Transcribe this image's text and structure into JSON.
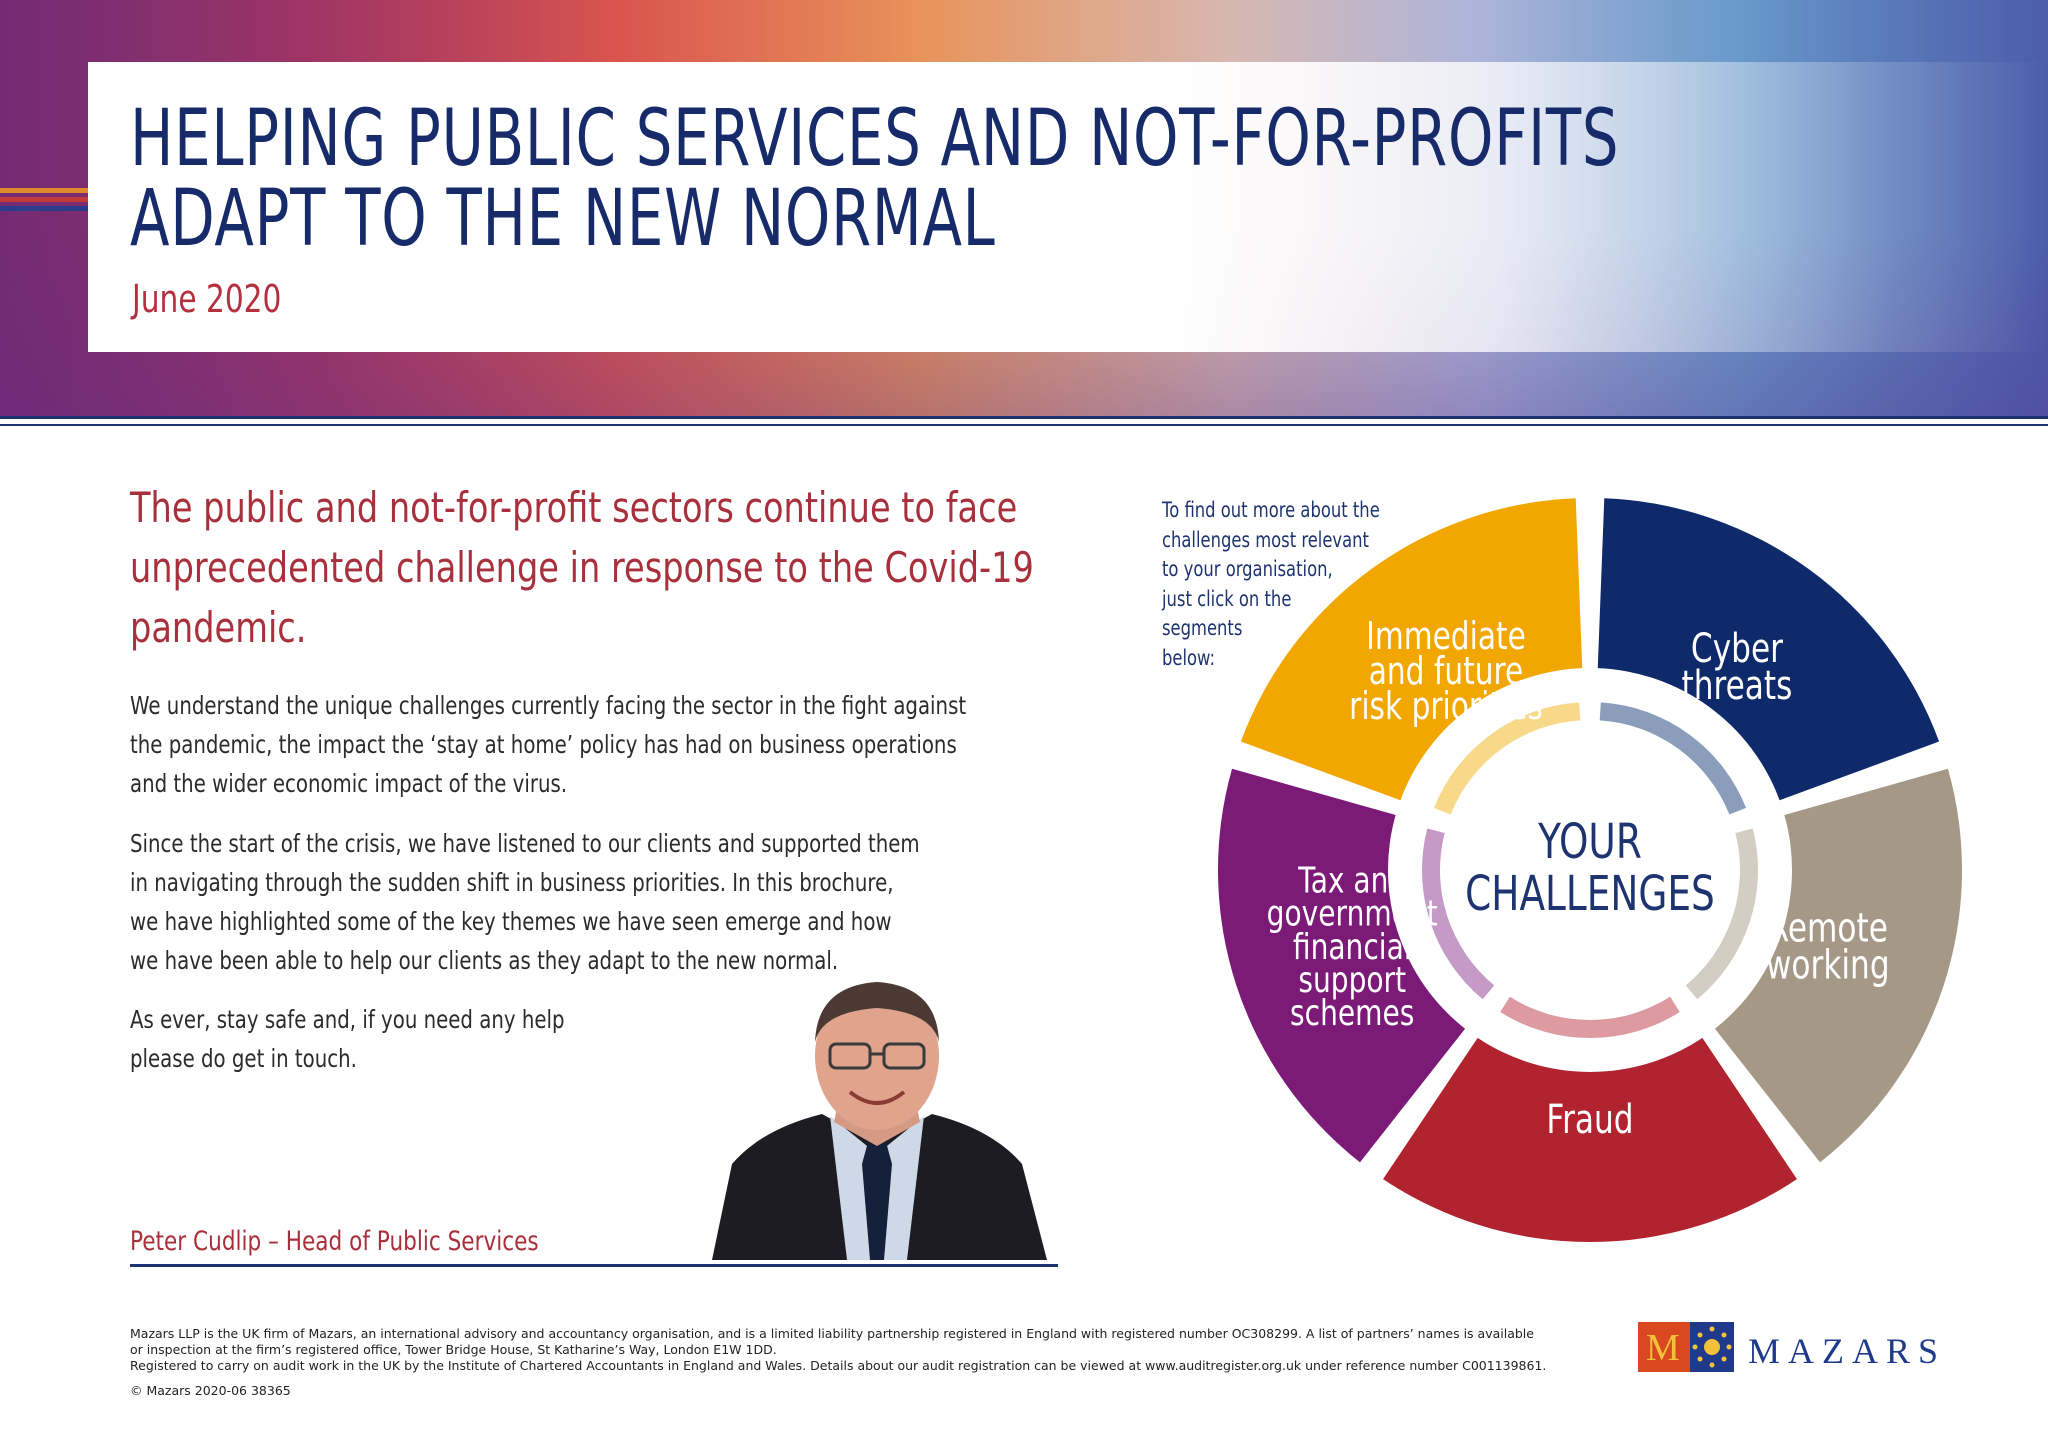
{
  "header": {
    "title_line1": "HELPING PUBLIC SERVICES AND NOT-FOR-PROFITS",
    "title_line2": "ADAPT TO THE NEW NORMAL",
    "date": "June 2020"
  },
  "intro": {
    "lines": [
      "The public and not-for-profit sectors continue to face",
      "unprecedented challenge in response to the Covid-19",
      "pandemic."
    ]
  },
  "body": {
    "paragraph1": [
      "We understand the unique challenges currently facing the sector in the fight against",
      "the pandemic, the impact the ‘stay at home’ policy has had on business operations",
      "and the wider economic impact of the virus."
    ],
    "paragraph2": [
      "Since the start of the crisis, we have listened to our clients and supported them",
      "in navigating through the sudden shift in business priorities. In this brochure,",
      "we have highlighted some of the key themes we have seen emerge and how",
      "we have been able to help our clients as they adapt to the new normal."
    ],
    "paragraph3": [
      "As ever, stay safe and, if you need any help",
      "please do get in touch."
    ]
  },
  "signature": "Peter Cudlip – Head of Public Services",
  "wheel": {
    "note_lines": [
      "To find out more about the",
      "challenges most relevant",
      "to your organisation,",
      "just click on the",
      "segments",
      "below:"
    ],
    "center_line1": "YOUR",
    "center_line2": "CHALLENGES",
    "segments": [
      {
        "id": "cyber",
        "label_lines": [
          "Cyber",
          "threats"
        ],
        "color": "#0f2a6b",
        "inner_color": "#8a9dbb"
      },
      {
        "id": "remote",
        "label_lines": [
          "Remote",
          "working"
        ],
        "color": "#a59886",
        "inner_color": "#d4cdc4"
      },
      {
        "id": "fraud",
        "label_lines": [
          "Fraud"
        ],
        "color": "#b0232f",
        "inner_color": "#dd9aa0"
      },
      {
        "id": "tax",
        "label_lines": [
          "Tax and",
          "government",
          "financial",
          "support",
          "schemes"
        ],
        "color": "#7c1a78",
        "inner_color": "#c59ac6"
      },
      {
        "id": "risk",
        "label_lines": [
          "Immediate",
          "and future",
          "risk priorities"
        ],
        "color": "#f2a600",
        "inner_color": "#f8d98a"
      }
    ]
  },
  "footer": {
    "line1": "Mazars LLP is the UK firm of Mazars, an international advisory and accountancy organisation, and is a limited liability partnership registered in England with registered number OC308299. A list of partners’ names is available",
    "line2": "or inspection at the firm’s registered office, Tower Bridge House, St Katharine’s Way, London  E1W 1DD.",
    "line3": "Registered to carry on audit work in the UK by the Institute of Chartered Accountants in England and Wales. Details about our audit registration can be viewed at www.auditregister.org.uk under reference number C001139861.",
    "copyright": "© Mazars 2020-06  38365"
  },
  "logo": {
    "letter": "M",
    "word": "MAZARS"
  },
  "colors": {
    "navy": "#1e3470",
    "red_text": "#a8303c"
  }
}
